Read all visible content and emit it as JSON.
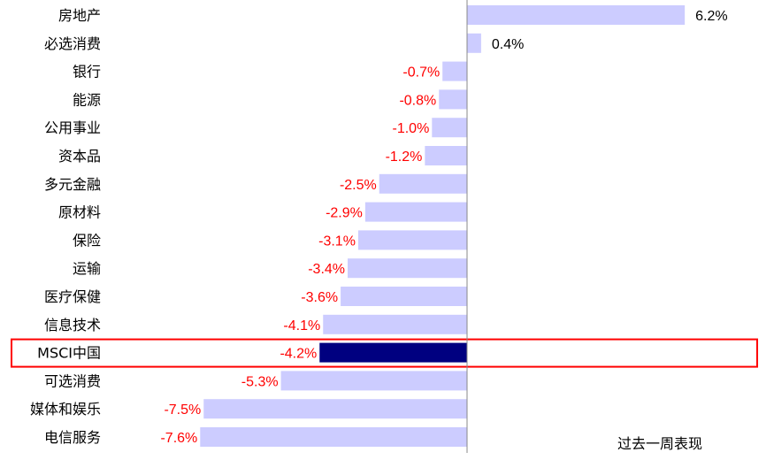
{
  "chart_data": {
    "type": "bar",
    "orientation": "horizontal",
    "categories": [
      "房地产",
      "必选消费",
      "银行",
      "能源",
      "公用事业",
      "资本品",
      "多元金融",
      "原材料",
      "保险",
      "运输",
      "医疗保健",
      "信息技术",
      "MSCI中国",
      "可选消费",
      "媒体和娱乐",
      "电信服务"
    ],
    "values": [
      6.2,
      0.4,
      -0.7,
      -0.8,
      -1.0,
      -1.2,
      -2.5,
      -2.9,
      -3.1,
      -3.4,
      -3.6,
      -4.1,
      -4.2,
      -5.3,
      -7.5,
      -7.6
    ],
    "value_labels": [
      "6.2%",
      "0.4%",
      "-0.7%",
      "-0.8%",
      "-1.0%",
      "-1.2%",
      "-2.5%",
      "-2.9%",
      "-3.1%",
      "-3.4%",
      "-3.6%",
      "-4.1%",
      "-4.2%",
      "-5.3%",
      "-7.5%",
      "-7.6%"
    ],
    "unit": "%",
    "highlight_category": "MSCI中国",
    "note": "过去一周表现",
    "colors": {
      "bar": "#ccccff",
      "highlight_bar": "#000080",
      "negative_label": "#ff0000",
      "positive_label": "#000000",
      "highlight_box": "#ff0000",
      "axis": "#888888"
    }
  }
}
